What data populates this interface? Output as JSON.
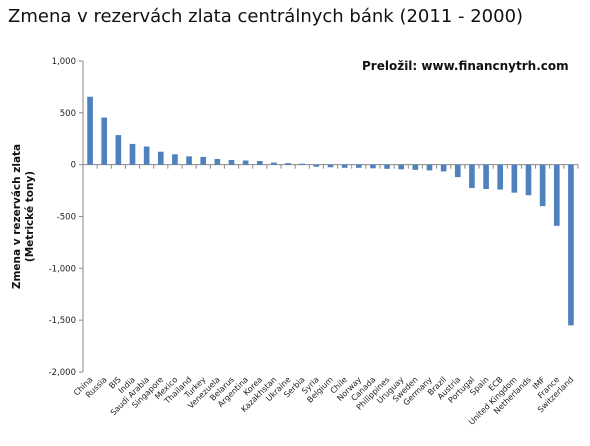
{
  "chart_data": {
    "type": "bar",
    "title": "Zmena v rezervách zlata centrálnych bánk (2011 - 2000)",
    "ylabel": "Zmena v rezervách zlata (Metrické tony)",
    "ylabel_lines": [
      "Zmena v rezervách zlata",
      "(Metrické tony)"
    ],
    "xlabel": "",
    "ylim": [
      -2000,
      1000
    ],
    "yticks": [
      1000,
      500,
      0,
      -500,
      -1000,
      -1500,
      -2000
    ],
    "ytick_labels": [
      "1,000",
      "500",
      "0",
      "-500",
      "-1,000",
      "-1,500",
      "-2,000"
    ],
    "grid": false,
    "bar_color": "#4f81bd",
    "categories": [
      "China",
      "Russia",
      "BIS",
      "India",
      "Saudi Arabia",
      "Singapore",
      "Mexico",
      "Thailand",
      "Turkey",
      "Venezuela",
      "Belarus",
      "Argentina",
      "Korea",
      "Kazakhstan",
      "Ukraine",
      "Serbia",
      "Syria",
      "Belgium",
      "Chile",
      "Norway",
      "Canada",
      "Philippines",
      "Uruguay",
      "Sweden",
      "Germany",
      "Brazil",
      "Austria",
      "Portugal",
      "Spain",
      "ECB",
      "United Kingdom",
      "Netherlands",
      "IMF",
      "France",
      "Switzerland"
    ],
    "values": [
      655,
      455,
      285,
      200,
      175,
      125,
      100,
      80,
      75,
      55,
      45,
      40,
      35,
      20,
      15,
      10,
      -20,
      -25,
      -30,
      -30,
      -35,
      -40,
      -45,
      -50,
      -55,
      -65,
      -120,
      -225,
      -235,
      -240,
      -270,
      -295,
      -400,
      -590,
      -1550
    ]
  },
  "credit": "Preložil: www.financnytrh.com"
}
